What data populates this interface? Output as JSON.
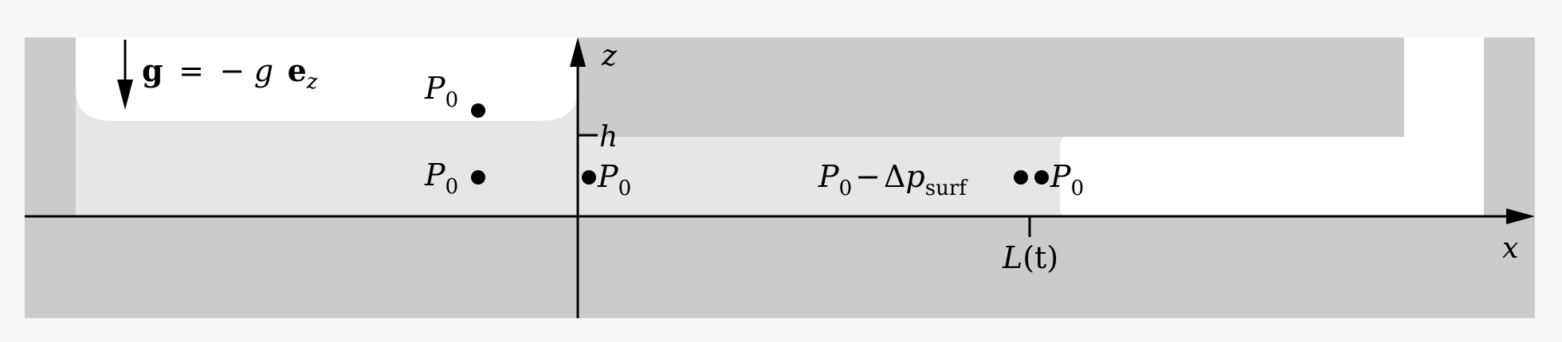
{
  "colors": {
    "page_background": "#f7f7f7",
    "solid_wall": "#cbcbcb",
    "liquid": "#e6e6e6",
    "gas": "#ffffff",
    "ink": "#000000"
  },
  "gravity": {
    "g_vec": "g",
    "eq": "=",
    "minus": "−",
    "g_sym": "g",
    "e_vec": "e",
    "e_sub": "z"
  },
  "axes": {
    "x_label": "x",
    "z_label": "z"
  },
  "ticks": {
    "h_label": "h",
    "L_label": "L",
    "L_paren": "(t)"
  },
  "pressures": {
    "p_sym": "P",
    "p_sub": "0",
    "surf_minus": "−",
    "surf_delta": "Δ",
    "surf_p": "p",
    "surf_sub": "surf"
  }
}
